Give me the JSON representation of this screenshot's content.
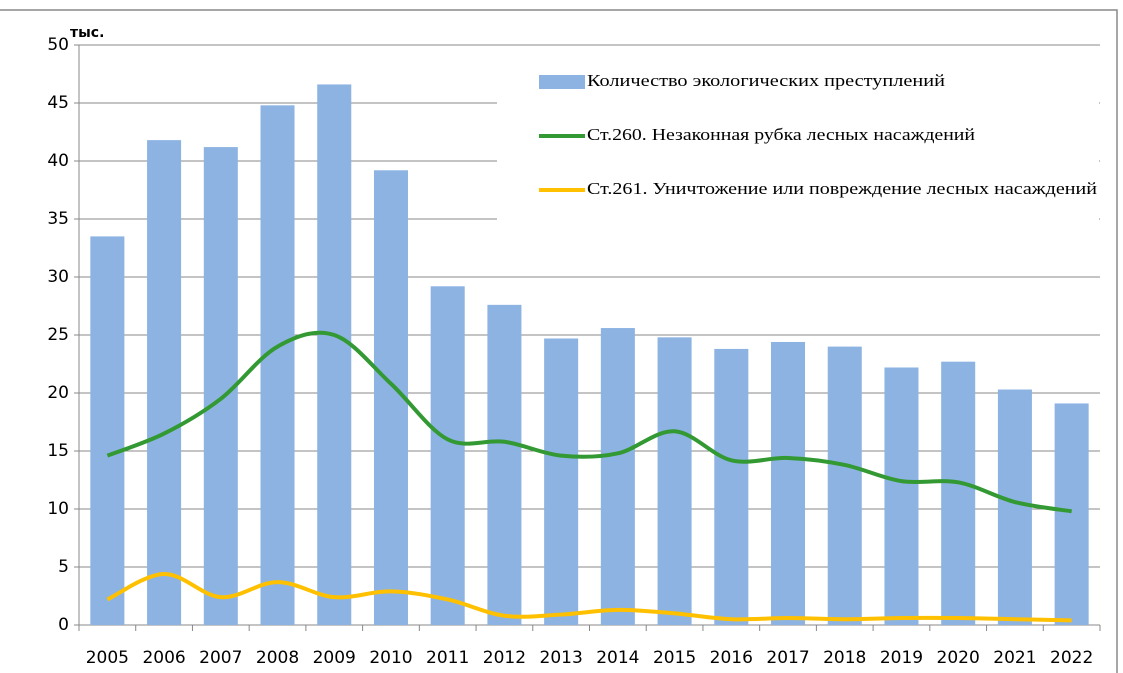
{
  "chart_data": {
    "type": "bar-line",
    "y_label": "тыс.",
    "categories": [
      "2005",
      "2006",
      "2007",
      "2008",
      "2009",
      "2010",
      "2011",
      "2012",
      "2013",
      "2014",
      "2015",
      "2016",
      "2017",
      "2018",
      "2019",
      "2020",
      "2021",
      "2022"
    ],
    "series": [
      {
        "name": "Количество экологических преступлений",
        "type": "bar",
        "color": "#8db3e2",
        "values": [
          33.5,
          41.8,
          41.2,
          44.8,
          46.6,
          39.2,
          29.2,
          27.6,
          24.7,
          25.6,
          24.8,
          23.8,
          24.4,
          24.0,
          22.2,
          22.7,
          20.3,
          19.1
        ]
      },
      {
        "name": "Ст.260. Незаконная рубка лесных насаждений",
        "type": "line",
        "color": "#339933",
        "values": [
          14.6,
          16.5,
          19.5,
          24.0,
          25.0,
          20.8,
          16.0,
          15.8,
          14.6,
          14.8,
          16.7,
          14.2,
          14.4,
          13.8,
          12.4,
          12.3,
          10.6,
          9.8
        ]
      },
      {
        "name": "Ст.261. Уничтожение или повреждение лесных насаждений",
        "type": "line",
        "color": "#ffc000",
        "values": [
          2.2,
          4.4,
          2.4,
          3.7,
          2.4,
          2.9,
          2.2,
          0.8,
          0.9,
          1.3,
          1.0,
          0.5,
          0.6,
          0.5,
          0.6,
          0.6,
          0.5,
          0.4
        ]
      }
    ],
    "ylim": [
      0,
      50
    ],
    "yticks": [
      0,
      5,
      10,
      15,
      20,
      25,
      30,
      35,
      40,
      45,
      50
    ],
    "grid": true,
    "legend": "upper right",
    "smooth": true
  }
}
